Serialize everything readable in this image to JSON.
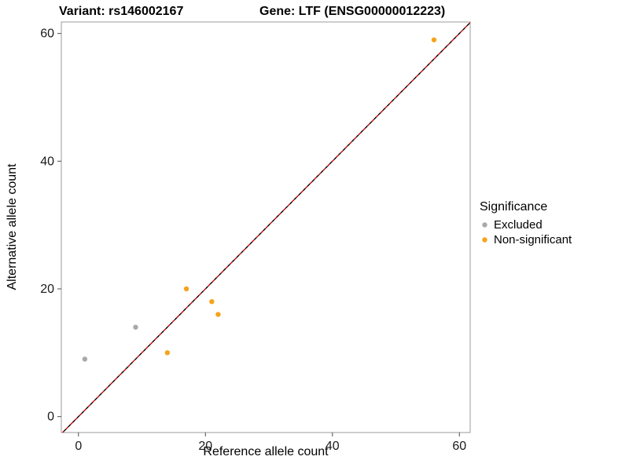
{
  "titles": {
    "variant": "Variant: rs146002167",
    "gene": "Gene: LTF (ENSG00000012223)"
  },
  "chart_data": {
    "type": "scatter",
    "title_left": "Variant: rs146002167",
    "title_right": "Gene: LTF (ENSG00000012223)",
    "xlabel": "Reference allele count",
    "ylabel": "Alternative allele count",
    "xlim": [
      -2.7,
      61.7
    ],
    "ylim": [
      -2.5,
      61.8
    ],
    "ticks": [
      0,
      20,
      40,
      60
    ],
    "grid": false,
    "panel_border_color": "#9b9b9b",
    "tick_color": "#4d4d4d",
    "legend": {
      "title": "Significance",
      "position": "right",
      "entries": [
        {
          "label": "Excluded",
          "color": "#a9a9a9"
        },
        {
          "label": "Non-significant",
          "color": "#f5a31a"
        }
      ]
    },
    "series": [
      {
        "name": "Excluded",
        "color": "#a9a9a9",
        "points": [
          [
            1,
            9
          ],
          [
            9,
            14
          ]
        ]
      },
      {
        "name": "Non-significant",
        "color": "#f5a31a",
        "points": [
          [
            14,
            10
          ],
          [
            17,
            20
          ],
          [
            21,
            18
          ],
          [
            22,
            16
          ],
          [
            56,
            59
          ]
        ]
      }
    ],
    "reference_lines": [
      {
        "name": "identity",
        "style": "dashed",
        "color": "#000000",
        "slope": 1,
        "intercept": 0
      },
      {
        "name": "fit",
        "style": "dashed",
        "color": "#cc0000",
        "slope": 1,
        "intercept": 0
      }
    ]
  }
}
